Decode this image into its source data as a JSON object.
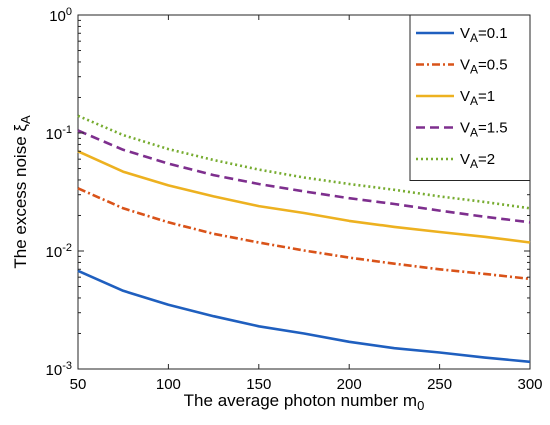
{
  "chart_data": {
    "type": "line",
    "xlabel": "The average photon number m",
    "xlabel_sub": "0",
    "ylabel": "The excess noise ξ",
    "ylabel_sub": "A",
    "xlim": [
      50,
      300
    ],
    "ylim": [
      0.001,
      1
    ],
    "yscale": "log",
    "x_ticks": [
      50,
      100,
      150,
      200,
      250,
      300
    ],
    "x_tick_labels": [
      "50",
      "100",
      "150",
      "200",
      "250",
      "300"
    ],
    "y_ticks": [
      0.001,
      0.01,
      0.1,
      1
    ],
    "y_tick_labels": [
      {
        "base": "10",
        "exp": "-3"
      },
      {
        "base": "10",
        "exp": "-2"
      },
      {
        "base": "10",
        "exp": "-1"
      },
      {
        "base": "10",
        "exp": "0"
      }
    ],
    "grid": false,
    "legend_position": "top-right",
    "x": [
      50,
      75,
      100,
      125,
      150,
      175,
      200,
      225,
      250,
      275,
      300
    ],
    "series": [
      {
        "name_base": "V",
        "name_sub": "A",
        "name_value": "=0.1",
        "color": "#1f5fbf",
        "dash": "solid",
        "values": [
          0.0068,
          0.0046,
          0.0035,
          0.0028,
          0.0023,
          0.002,
          0.0017,
          0.0015,
          0.00138,
          0.00125,
          0.00115
        ]
      },
      {
        "name_base": "V",
        "name_sub": "A",
        "name_value": "=0.5",
        "color": "#d95319",
        "dash": "dashdot",
        "values": [
          0.034,
          0.023,
          0.0175,
          0.014,
          0.0118,
          0.0101,
          0.0088,
          0.0078,
          0.007,
          0.0064,
          0.0058
        ]
      },
      {
        "name_base": "V",
        "name_sub": "A",
        "name_value": "=1",
        "color": "#edb120",
        "dash": "solid",
        "values": [
          0.07,
          0.047,
          0.036,
          0.029,
          0.024,
          0.021,
          0.018,
          0.016,
          0.0145,
          0.0132,
          0.0118
        ]
      },
      {
        "name_base": "V",
        "name_sub": "A",
        "name_value": "=1.5",
        "color": "#7e2f8e",
        "dash": "dashed",
        "values": [
          0.105,
          0.072,
          0.055,
          0.044,
          0.037,
          0.032,
          0.028,
          0.025,
          0.022,
          0.0195,
          0.0175
        ]
      },
      {
        "name_base": "V",
        "name_sub": "A",
        "name_value": "=2",
        "color": "#77ac30",
        "dash": "dotted",
        "values": [
          0.14,
          0.096,
          0.073,
          0.059,
          0.049,
          0.042,
          0.037,
          0.033,
          0.029,
          0.026,
          0.023
        ]
      }
    ]
  }
}
